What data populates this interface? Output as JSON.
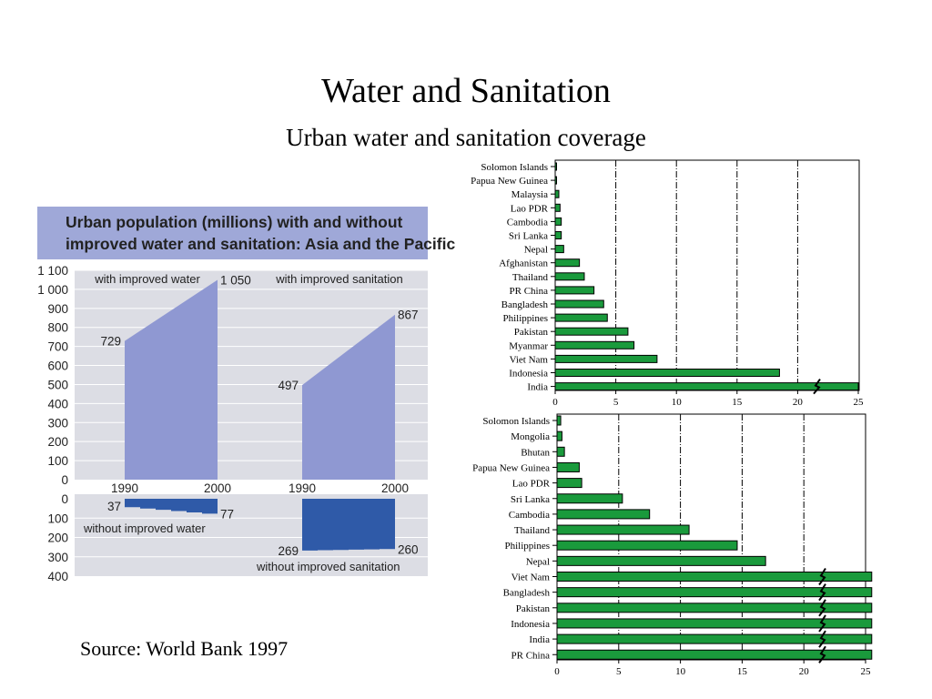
{
  "slide": {
    "title": "Water and Sanitation",
    "subtitle": "Urban water and sanitation coverage",
    "source": "Source: World Bank 1997"
  },
  "colors": {
    "panel_bg": "#dcdde4",
    "header_bg": "#9fa8d8",
    "area_light": "#8f98d2",
    "area_dark": "#2f5aa8",
    "bar_green": "#1a9a3c",
    "text_dark": "#222222"
  },
  "chart_data": [
    {
      "type": "area",
      "title": "Urban population (millions) with and without improved water and sanitation: Asia and the Pacific",
      "title_lines": [
        "Urban population (millions) with and without",
        "improved water and sanitation: Asia and the Pacific"
      ],
      "yticks_top": [
        "1 100",
        "1 000",
        "900",
        "800",
        "700",
        "600",
        "500",
        "400",
        "300",
        "200",
        "100",
        "0"
      ],
      "yticks_bottom": [
        "0",
        "100",
        "200",
        "300",
        "400"
      ],
      "ylim_top": [
        0,
        1100
      ],
      "ylim_bottom": [
        0,
        400
      ],
      "x": [
        "1990",
        "2000"
      ],
      "panels": [
        {
          "name": "with improved water",
          "with_values": [
            729,
            1050
          ],
          "with_labels": [
            "729",
            "1 050"
          ],
          "without_name": "without improved water",
          "without_values": [
            37,
            77
          ],
          "without_labels": [
            "37",
            "77"
          ]
        },
        {
          "name": "with improved sanitation",
          "with_values": [
            497,
            867
          ],
          "with_labels": [
            "497",
            "867"
          ],
          "without_name": "without improved sanitation",
          "without_values": [
            269,
            260
          ],
          "without_labels": [
            "269",
            "260"
          ]
        }
      ]
    },
    {
      "type": "bar",
      "orientation": "horizontal",
      "categories": [
        "Solomon Islands",
        "Papua New Guinea",
        "Malaysia",
        "Lao PDR",
        "Cambodia",
        "Sri Lanka",
        "Nepal",
        "Afghanistan",
        "Thailand",
        "PR China",
        "Bangladesh",
        "Philippines",
        "Pakistan",
        "Myanmar",
        "Viet Nam",
        "Indonesia",
        "India"
      ],
      "values": [
        0.1,
        0.1,
        0.3,
        0.4,
        0.5,
        0.5,
        0.7,
        2.0,
        2.4,
        3.2,
        4.0,
        4.3,
        6.0,
        6.5,
        8.4,
        18.5,
        25
      ],
      "broken_bars": [
        "India"
      ],
      "xlim": [
        0,
        25
      ],
      "xticks": [
        "0",
        "5",
        "10",
        "15",
        "20",
        "25"
      ]
    },
    {
      "type": "bar",
      "orientation": "horizontal",
      "categories": [
        "Solomon Islands",
        "Mongolia",
        "Bhutan",
        "Papua New Guinea",
        "Lao PDR",
        "Sri Lanka",
        "Cambodia",
        "Thailand",
        "Philippines",
        "Nepal",
        "Viet Nam",
        "Bangladesh",
        "Pakistan",
        "Indonesia",
        "India",
        "PR China"
      ],
      "values": [
        0.3,
        0.4,
        0.6,
        1.8,
        2.0,
        5.3,
        7.5,
        10.7,
        14.6,
        16.9,
        25.5,
        25.5,
        25.5,
        25.5,
        25.5,
        25.5
      ],
      "broken_bars": [
        "Viet Nam",
        "Bangladesh",
        "Pakistan",
        "Indonesia",
        "India",
        "PR China"
      ],
      "xlim": [
        0,
        25
      ],
      "xticks": [
        "0",
        "5",
        "10",
        "15",
        "20",
        "25"
      ]
    }
  ]
}
